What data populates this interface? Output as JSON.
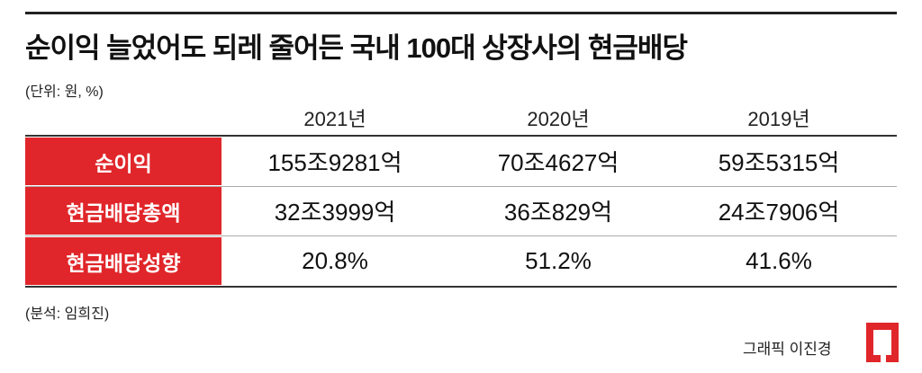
{
  "header": {
    "title": "순이익 늘었어도 되레 줄어든 국내 100대 상장사의 현금배당",
    "unit": "(단위: 원, %)"
  },
  "table": {
    "columns": [
      "2021년",
      "2020년",
      "2019년"
    ],
    "rows": [
      {
        "label": "순이익",
        "cells": [
          "155조9281억",
          "70조4627억",
          "59조5315억"
        ]
      },
      {
        "label": "현금배당총액",
        "cells": [
          "32조3999억",
          "36조829억",
          "24조7906억"
        ]
      },
      {
        "label": "현금배당성향",
        "cells": [
          "20.8%",
          "51.2%",
          "41.6%"
        ]
      }
    ]
  },
  "footer": {
    "source": "(분석: 임희진)",
    "credit": "그래픽 이진경"
  }
}
